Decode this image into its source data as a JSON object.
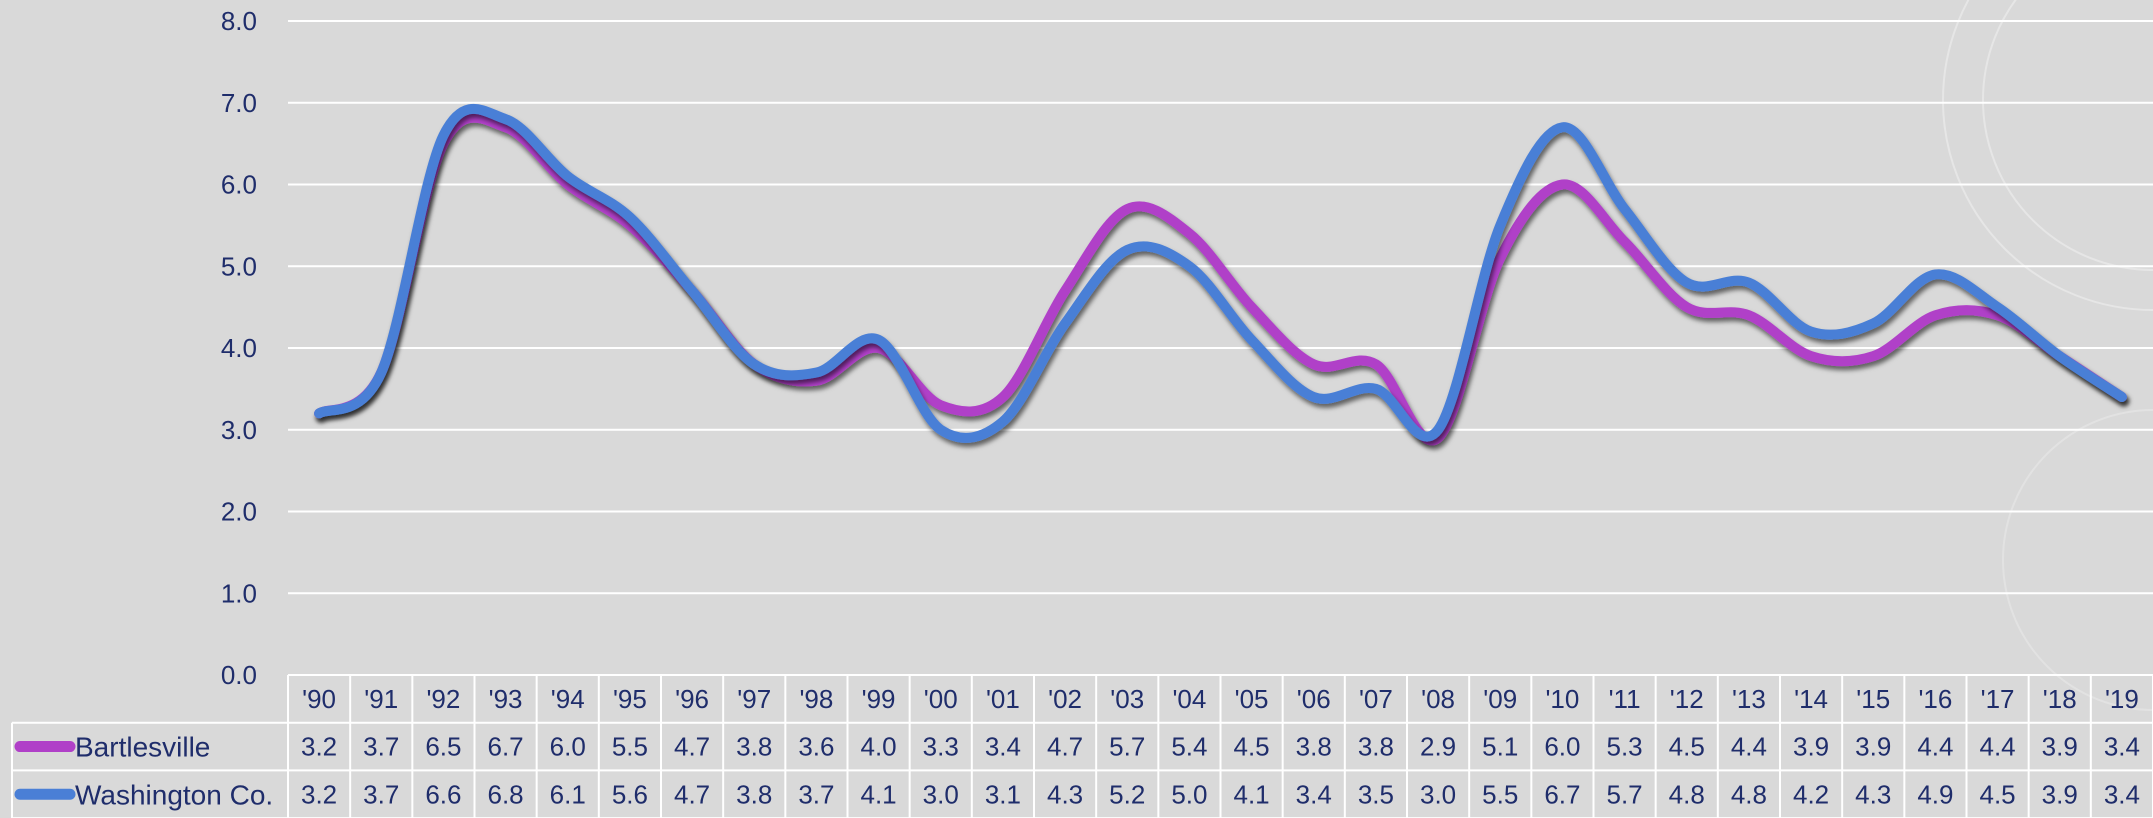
{
  "chart_data": {
    "type": "line",
    "title": "",
    "xlabel": "",
    "ylabel": "",
    "ylim": [
      0,
      8
    ],
    "y_ticks": [
      "0.0",
      "1.0",
      "2.0",
      "3.0",
      "4.0",
      "5.0",
      "6.0",
      "7.0",
      "8.0"
    ],
    "grid": true,
    "legend": "data-table",
    "categories": [
      "'90",
      "'91",
      "'92",
      "'93",
      "'94",
      "'95",
      "'96",
      "'97",
      "'98",
      "'99",
      "'00",
      "'01",
      "'02",
      "'03",
      "'04",
      "'05",
      "'06",
      "'07",
      "'08",
      "'09",
      "'10",
      "'11",
      "'12",
      "'13",
      "'14",
      "'15",
      "'16",
      "'17",
      "'18",
      "'19"
    ],
    "series": [
      {
        "name": "Bartlesville",
        "color": "#b040c8",
        "values": [
          3.2,
          3.7,
          6.5,
          6.7,
          6.0,
          5.5,
          4.7,
          3.8,
          3.6,
          4.0,
          3.3,
          3.4,
          4.7,
          5.7,
          5.4,
          4.5,
          3.8,
          3.8,
          2.9,
          5.1,
          6.0,
          5.3,
          4.5,
          4.4,
          3.9,
          3.9,
          4.4,
          4.4,
          3.9,
          3.4
        ],
        "labels": [
          "3.2",
          "3.7",
          "6.5",
          "6.7",
          "6.0",
          "5.5",
          "4.7",
          "3.8",
          "3.6",
          "4.0",
          "3.3",
          "3.4",
          "4.7",
          "5.7",
          "5.4",
          "4.5",
          "3.8",
          "3.8",
          "2.9",
          "5.1",
          "6.0",
          "5.3",
          "4.5",
          "4.4",
          "3.9",
          "3.9",
          "4.4",
          "4.4",
          "3.9",
          "3.4"
        ]
      },
      {
        "name": "Washington Co.",
        "color": "#4a7fd6",
        "values": [
          3.2,
          3.7,
          6.6,
          6.8,
          6.1,
          5.6,
          4.7,
          3.8,
          3.7,
          4.1,
          3.0,
          3.1,
          4.3,
          5.2,
          5.0,
          4.1,
          3.4,
          3.5,
          3.0,
          5.5,
          6.7,
          5.7,
          4.8,
          4.8,
          4.2,
          4.3,
          4.9,
          4.5,
          3.9,
          3.4
        ],
        "labels": [
          "3.2",
          "3.7",
          "6.6",
          "6.8",
          "6.1",
          "5.6",
          "4.7",
          "3.8",
          "3.7",
          "4.1",
          "3.0",
          "3.1",
          "4.3",
          "5.2",
          "5.0",
          "4.1",
          "3.4",
          "3.5",
          "3.0",
          "5.5",
          "6.7",
          "5.7",
          "4.8",
          "4.8",
          "4.2",
          "4.3",
          "4.9",
          "4.5",
          "3.9",
          "3.4"
        ]
      }
    ]
  }
}
